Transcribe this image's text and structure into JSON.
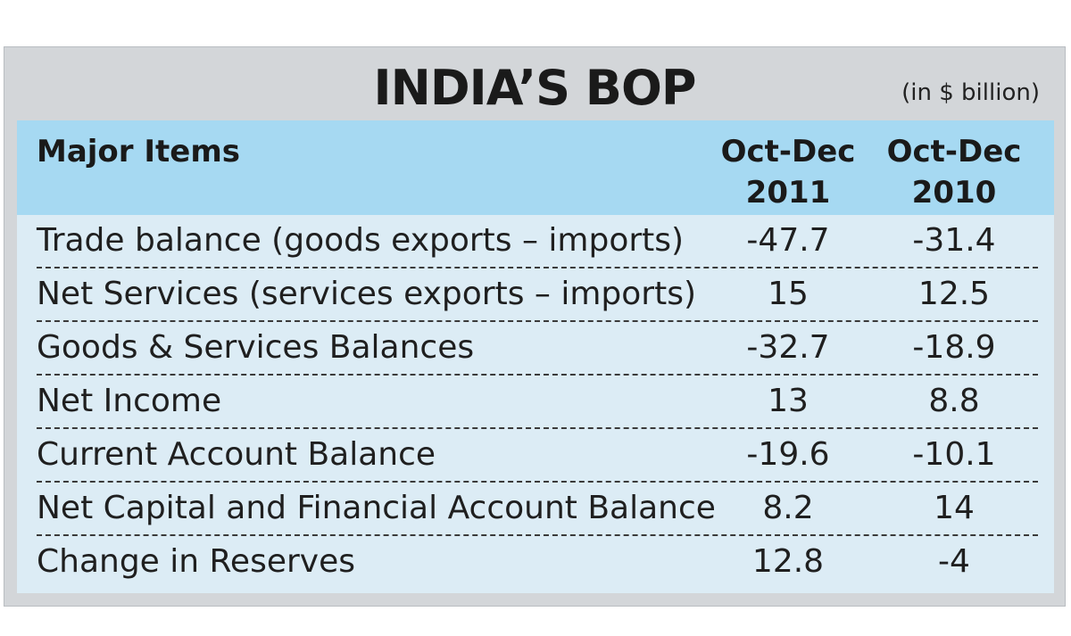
{
  "title": "INDIA’S BOP",
  "unit": "(in $ billion)",
  "chart_data": {
    "type": "table",
    "title": "INDIA’S BOP",
    "unit": "(in $ billion)",
    "header": {
      "item": "Major Items",
      "col1_line1": "Oct-Dec",
      "col1_line2": "2011",
      "col2_line1": "Oct-Dec",
      "col2_line2": "2010"
    },
    "columns": [
      "Oct-Dec 2011",
      "Oct-Dec 2010"
    ],
    "rows": [
      {
        "item": "Trade balance (goods exports – imports)",
        "v2011": "-47.7",
        "v2010": "-31.4"
      },
      {
        "item": "Net Services (services exports – imports)",
        "v2011": "15",
        "v2010": "12.5"
      },
      {
        "item": "Goods & Services Balances",
        "v2011": "-32.7",
        "v2010": "-18.9"
      },
      {
        "item": "Net Income",
        "v2011": "13",
        "v2010": "8.8"
      },
      {
        "item": "Current Account Balance",
        "v2011": "-19.6",
        "v2010": "-10.1"
      },
      {
        "item": "Net Capital and Financial Account Balance",
        "v2011": "8.2",
        "v2010": "14"
      },
      {
        "item": "Change in Reserves",
        "v2011": "12.8",
        "v2010": "-4"
      }
    ]
  },
  "colors": {
    "panel_background": "#d3d6d9",
    "header_background": "#a6d9f2",
    "body_background": "#dcecf5",
    "text": "#1a1a1a"
  }
}
